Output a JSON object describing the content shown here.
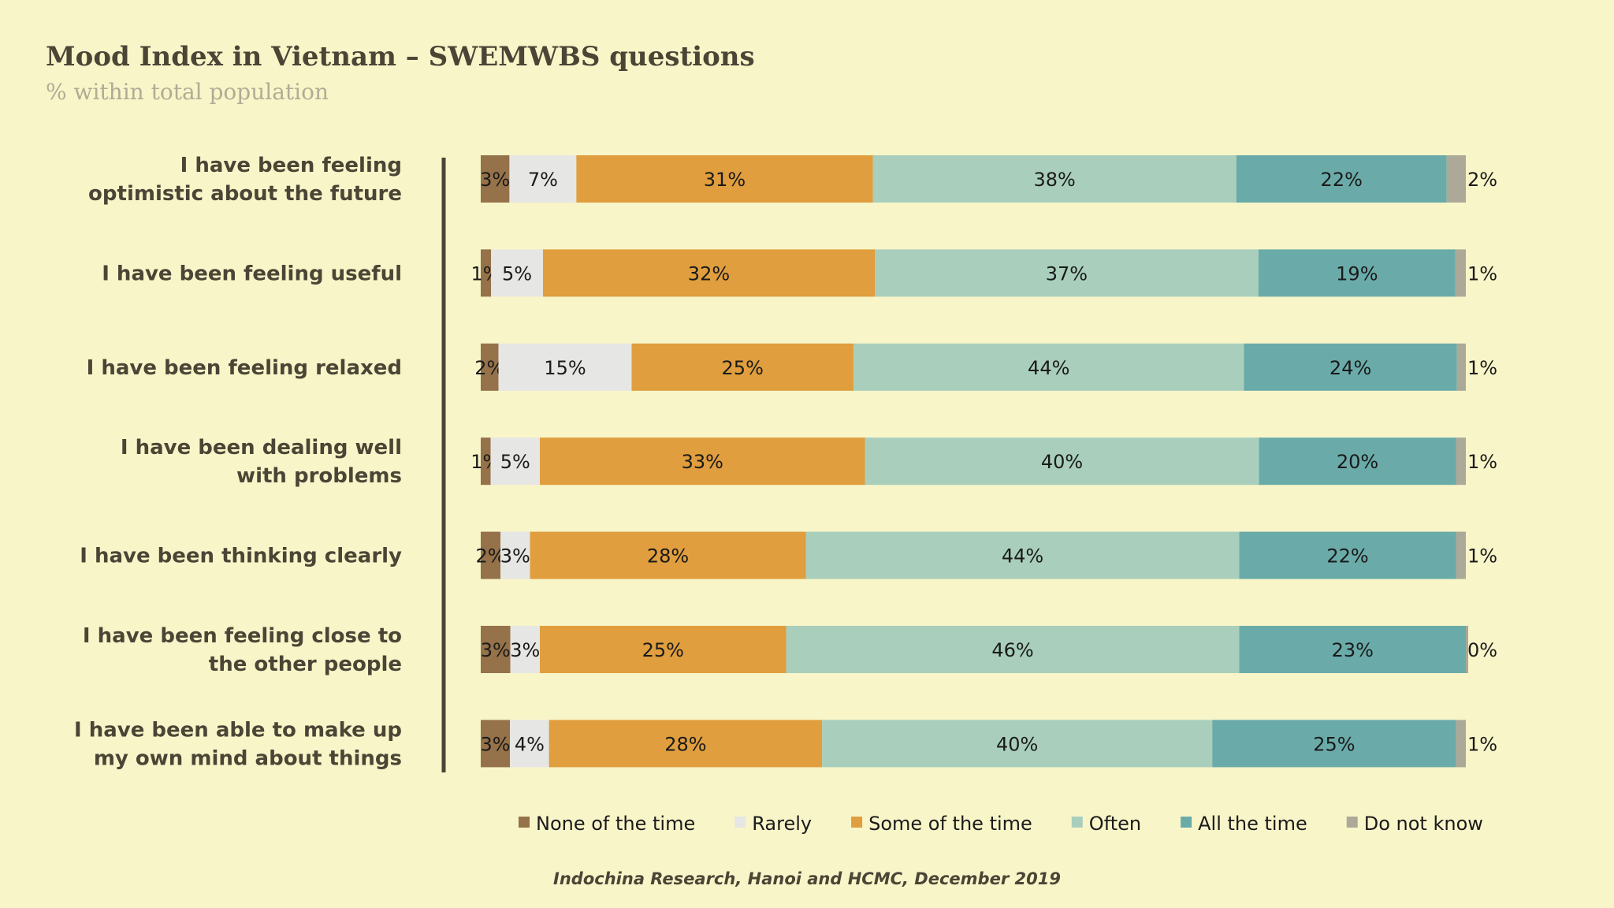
{
  "chart_data": {
    "type": "bar",
    "orientation": "horizontal",
    "stacked": true,
    "title": "Mood Index in Vietnam – SWEMWBS questions",
    "subtitle": "% within total population",
    "categories": [
      "I have been feeling optimistic about the future",
      "I have been feeling useful",
      "I have been feeling relaxed",
      "I have been dealing well with problems",
      "I have been thinking clearly",
      "I have been feeling close to the other people",
      "I have been able to make up my own mind about things"
    ],
    "category_lines": [
      [
        "I have been feeling",
        "optimistic about the future"
      ],
      [
        "I have been feeling useful"
      ],
      [
        "I have been feeling relaxed"
      ],
      [
        "I have been dealing well",
        "with problems"
      ],
      [
        "I have been thinking clearly"
      ],
      [
        "I have been feeling close to",
        "the other people"
      ],
      [
        "I have been able to make up",
        "my own mind about things"
      ]
    ],
    "series": [
      {
        "name": "None of the time",
        "color": "#957249",
        "values": [
          3,
          1,
          2,
          1,
          2,
          3,
          3
        ]
      },
      {
        "name": "Rarely",
        "color": "#e6e6e4",
        "values": [
          7,
          5,
          15,
          5,
          3,
          3,
          4
        ]
      },
      {
        "name": "Some of the time",
        "color": "#e09e3e",
        "values": [
          31,
          32,
          25,
          33,
          28,
          25,
          28
        ]
      },
      {
        "name": "Often",
        "color": "#a9cfbc",
        "values": [
          38,
          37,
          44,
          40,
          44,
          46,
          40
        ]
      },
      {
        "name": "All the time",
        "color": "#6aaba9",
        "values": [
          22,
          19,
          24,
          20,
          22,
          23,
          25
        ]
      },
      {
        "name": "Do not know",
        "color": "#aca998",
        "values": [
          2,
          1,
          1,
          1,
          1,
          0,
          1
        ]
      }
    ],
    "unit": "%",
    "legend_position": "bottom",
    "grid": false
  },
  "footer": "Indochina Research, Hanoi and HCMC, December 2019"
}
